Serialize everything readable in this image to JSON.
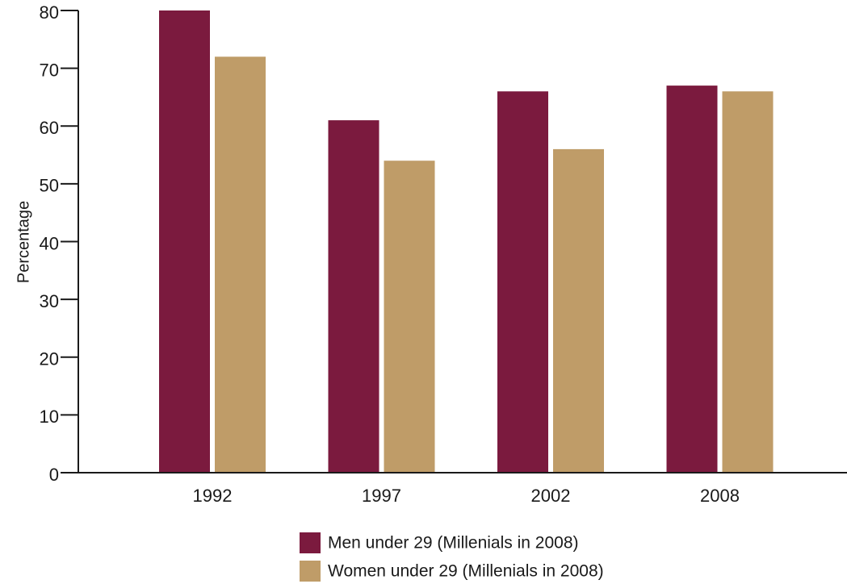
{
  "chart_data": {
    "type": "bar",
    "title": "",
    "xlabel": "",
    "ylabel": "Percentage",
    "ylim": [
      0,
      80
    ],
    "yticks": [
      0,
      10,
      20,
      30,
      40,
      50,
      60,
      70,
      80
    ],
    "categories": [
      "1992",
      "1997",
      "2002",
      "2008"
    ],
    "series": [
      {
        "name": "Men under 29 (Millenials in 2008)",
        "values": [
          80,
          61,
          66,
          67
        ],
        "color": "#7b1a3e"
      },
      {
        "name": "Women under 29 (Millenials in 2008)",
        "values": [
          72,
          54,
          56,
          66
        ],
        "color": "#bf9c68"
      }
    ],
    "grid": false,
    "legend_position": "bottom-center"
  }
}
